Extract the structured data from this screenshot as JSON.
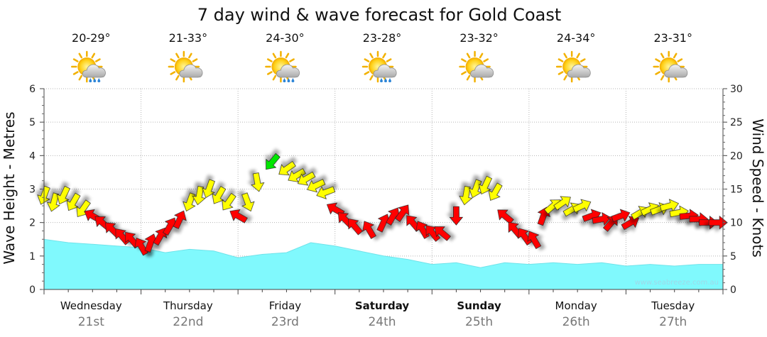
{
  "chart_data": {
    "type": "area",
    "title": "7 day wind & wave forecast for Gold Coast",
    "y_left_label": "Wave Height - Metres",
    "y_right_label": "Wind Speed - Knots",
    "y_left_range": [
      0,
      6
    ],
    "y_right_range": [
      0,
      30
    ],
    "y_left_ticks": [
      "0",
      "1",
      "2",
      "3",
      "4",
      "5",
      "6"
    ],
    "y_right_ticks": [
      "0",
      "5",
      "10",
      "15",
      "20",
      "25",
      "30"
    ],
    "grid": true,
    "credit": "www.seabreeze.com.au",
    "days": [
      {
        "day": "Wednesday",
        "date": "21st",
        "temp": "20-29°",
        "weather_icon": "sun-cloud-rain-icon",
        "bold": false
      },
      {
        "day": "Thursday",
        "date": "22nd",
        "temp": "21-33°",
        "weather_icon": "sun-cloud-icon",
        "bold": false
      },
      {
        "day": "Friday",
        "date": "23rd",
        "temp": "24-30°",
        "weather_icon": "sun-cloud-rain-icon",
        "bold": false
      },
      {
        "day": "Saturday",
        "date": "24th",
        "temp": "23-28°",
        "weather_icon": "sun-cloud-rain-icon",
        "bold": true
      },
      {
        "day": "Sunday",
        "date": "25th",
        "temp": "23-32°",
        "weather_icon": "sun-cloud-icon",
        "bold": true
      },
      {
        "day": "Monday",
        "date": "26th",
        "temp": "24-34°",
        "weather_icon": "sun-cloud-icon",
        "bold": false
      },
      {
        "day": "Tuesday",
        "date": "27th",
        "temp": "23-31°",
        "weather_icon": "sun-cloud-icon",
        "bold": false
      }
    ],
    "wave_series": {
      "name": "Wave height",
      "unit": "m",
      "x_day": [
        0,
        0.25,
        0.5,
        0.75,
        1,
        1.25,
        1.5,
        1.75,
        2,
        2.25,
        2.5,
        2.75,
        3,
        3.25,
        3.5,
        3.75,
        4,
        4.25,
        4.5,
        4.75,
        5,
        5.25,
        5.5,
        5.75,
        6,
        6.25,
        6.5,
        6.75,
        7
      ],
      "values": [
        1.5,
        1.4,
        1.35,
        1.3,
        1.25,
        1.1,
        1.2,
        1.15,
        0.95,
        1.05,
        1.1,
        1.4,
        1.3,
        1.15,
        1.0,
        0.9,
        0.75,
        0.8,
        0.65,
        0.8,
        0.75,
        0.8,
        0.75,
        0.8,
        0.7,
        0.75,
        0.7,
        0.75,
        0.75
      ]
    },
    "wind_series": {
      "name": "Wind speed",
      "unit": "knots",
      "colors": {
        "light": "#ffff00",
        "moderate": "#ff0000",
        "strong": "#00e600"
      },
      "points": [
        {
          "t": 0.0,
          "v": 14,
          "dir": 200,
          "level": "light"
        },
        {
          "t": 0.1,
          "v": 13,
          "dir": 195,
          "level": "light"
        },
        {
          "t": 0.2,
          "v": 14,
          "dir": 205,
          "level": "light"
        },
        {
          "t": 0.3,
          "v": 13,
          "dir": 210,
          "level": "light"
        },
        {
          "t": 0.4,
          "v": 12,
          "dir": 215,
          "level": "light"
        },
        {
          "t": 0.5,
          "v": 11,
          "dir": 300,
          "level": "moderate"
        },
        {
          "t": 0.6,
          "v": 10,
          "dir": 310,
          "level": "moderate"
        },
        {
          "t": 0.7,
          "v": 9,
          "dir": 315,
          "level": "moderate"
        },
        {
          "t": 0.8,
          "v": 8,
          "dir": 320,
          "level": "moderate"
        },
        {
          "t": 0.9,
          "v": 7.5,
          "dir": 320,
          "level": "moderate"
        },
        {
          "t": 1.0,
          "v": 6.5,
          "dir": 330,
          "level": "moderate"
        },
        {
          "t": 1.1,
          "v": 7,
          "dir": 20,
          "level": "moderate"
        },
        {
          "t": 1.2,
          "v": 8,
          "dir": 30,
          "level": "moderate"
        },
        {
          "t": 1.3,
          "v": 9.5,
          "dir": 30,
          "level": "moderate"
        },
        {
          "t": 1.4,
          "v": 10.5,
          "dir": 25,
          "level": "moderate"
        },
        {
          "t": 1.5,
          "v": 13,
          "dir": 200,
          "level": "light"
        },
        {
          "t": 1.6,
          "v": 14,
          "dir": 190,
          "level": "light"
        },
        {
          "t": 1.7,
          "v": 15,
          "dir": 200,
          "level": "light"
        },
        {
          "t": 1.8,
          "v": 14,
          "dir": 210,
          "level": "light"
        },
        {
          "t": 1.9,
          "v": 13,
          "dir": 215,
          "level": "light"
        },
        {
          "t": 2.0,
          "v": 11,
          "dir": 300,
          "level": "moderate"
        },
        {
          "t": 2.1,
          "v": 13,
          "dir": 160,
          "level": "light"
        },
        {
          "t": 2.2,
          "v": 16,
          "dir": 170,
          "level": "light"
        },
        {
          "t": 2.35,
          "v": 19,
          "dir": 220,
          "level": "strong"
        },
        {
          "t": 2.5,
          "v": 18,
          "dir": 235,
          "level": "light"
        },
        {
          "t": 2.6,
          "v": 17,
          "dir": 240,
          "level": "light"
        },
        {
          "t": 2.7,
          "v": 16.5,
          "dir": 240,
          "level": "light"
        },
        {
          "t": 2.8,
          "v": 15.5,
          "dir": 245,
          "level": "light"
        },
        {
          "t": 2.9,
          "v": 14.5,
          "dir": 250,
          "level": "light"
        },
        {
          "t": 3.0,
          "v": 12,
          "dir": 300,
          "level": "moderate"
        },
        {
          "t": 3.1,
          "v": 10.5,
          "dir": 315,
          "level": "moderate"
        },
        {
          "t": 3.2,
          "v": 9.5,
          "dir": 320,
          "level": "moderate"
        },
        {
          "t": 3.35,
          "v": 9,
          "dir": 330,
          "level": "moderate"
        },
        {
          "t": 3.5,
          "v": 10,
          "dir": 25,
          "level": "moderate"
        },
        {
          "t": 3.6,
          "v": 11,
          "dir": 30,
          "level": "moderate"
        },
        {
          "t": 3.7,
          "v": 11.5,
          "dir": 35,
          "level": "moderate"
        },
        {
          "t": 3.8,
          "v": 10,
          "dir": 320,
          "level": "moderate"
        },
        {
          "t": 3.9,
          "v": 9,
          "dir": 330,
          "level": "moderate"
        },
        {
          "t": 4.0,
          "v": 8.5,
          "dir": 320,
          "level": "moderate"
        },
        {
          "t": 4.1,
          "v": 8.5,
          "dir": 310,
          "level": "moderate"
        },
        {
          "t": 4.25,
          "v": 11,
          "dir": 180,
          "level": "moderate"
        },
        {
          "t": 4.35,
          "v": 14,
          "dir": 190,
          "level": "light"
        },
        {
          "t": 4.45,
          "v": 15,
          "dir": 200,
          "level": "light"
        },
        {
          "t": 4.55,
          "v": 15.5,
          "dir": 205,
          "level": "light"
        },
        {
          "t": 4.65,
          "v": 14.5,
          "dir": 210,
          "level": "light"
        },
        {
          "t": 4.75,
          "v": 11,
          "dir": 310,
          "level": "moderate"
        },
        {
          "t": 4.85,
          "v": 9,
          "dir": 320,
          "level": "moderate"
        },
        {
          "t": 4.95,
          "v": 8,
          "dir": 325,
          "level": "moderate"
        },
        {
          "t": 5.05,
          "v": 7.5,
          "dir": 330,
          "level": "moderate"
        },
        {
          "t": 5.15,
          "v": 11,
          "dir": 20,
          "level": "moderate"
        },
        {
          "t": 5.25,
          "v": 12.5,
          "dir": 50,
          "level": "light"
        },
        {
          "t": 5.35,
          "v": 13,
          "dir": 55,
          "level": "light"
        },
        {
          "t": 5.45,
          "v": 12,
          "dir": 60,
          "level": "light"
        },
        {
          "t": 5.55,
          "v": 12.5,
          "dir": 65,
          "level": "light"
        },
        {
          "t": 5.65,
          "v": 11,
          "dir": 70,
          "level": "moderate"
        },
        {
          "t": 5.75,
          "v": 10.5,
          "dir": 80,
          "level": "moderate"
        },
        {
          "t": 5.85,
          "v": 10,
          "dir": 40,
          "level": "moderate"
        },
        {
          "t": 5.95,
          "v": 11,
          "dir": 70,
          "level": "moderate"
        },
        {
          "t": 6.05,
          "v": 10,
          "dir": 60,
          "level": "moderate"
        },
        {
          "t": 6.15,
          "v": 11.5,
          "dir": 60,
          "level": "light"
        },
        {
          "t": 6.25,
          "v": 12,
          "dir": 65,
          "level": "light"
        },
        {
          "t": 6.35,
          "v": 12,
          "dir": 70,
          "level": "light"
        },
        {
          "t": 6.45,
          "v": 12.5,
          "dir": 75,
          "level": "light"
        },
        {
          "t": 6.55,
          "v": 11.5,
          "dir": 80,
          "level": "light"
        },
        {
          "t": 6.65,
          "v": 11,
          "dir": 85,
          "level": "moderate"
        },
        {
          "t": 6.75,
          "v": 10.5,
          "dir": 90,
          "level": "moderate"
        },
        {
          "t": 6.85,
          "v": 10,
          "dir": 90,
          "level": "moderate"
        },
        {
          "t": 6.95,
          "v": 10,
          "dir": 90,
          "level": "moderate"
        }
      ]
    }
  }
}
